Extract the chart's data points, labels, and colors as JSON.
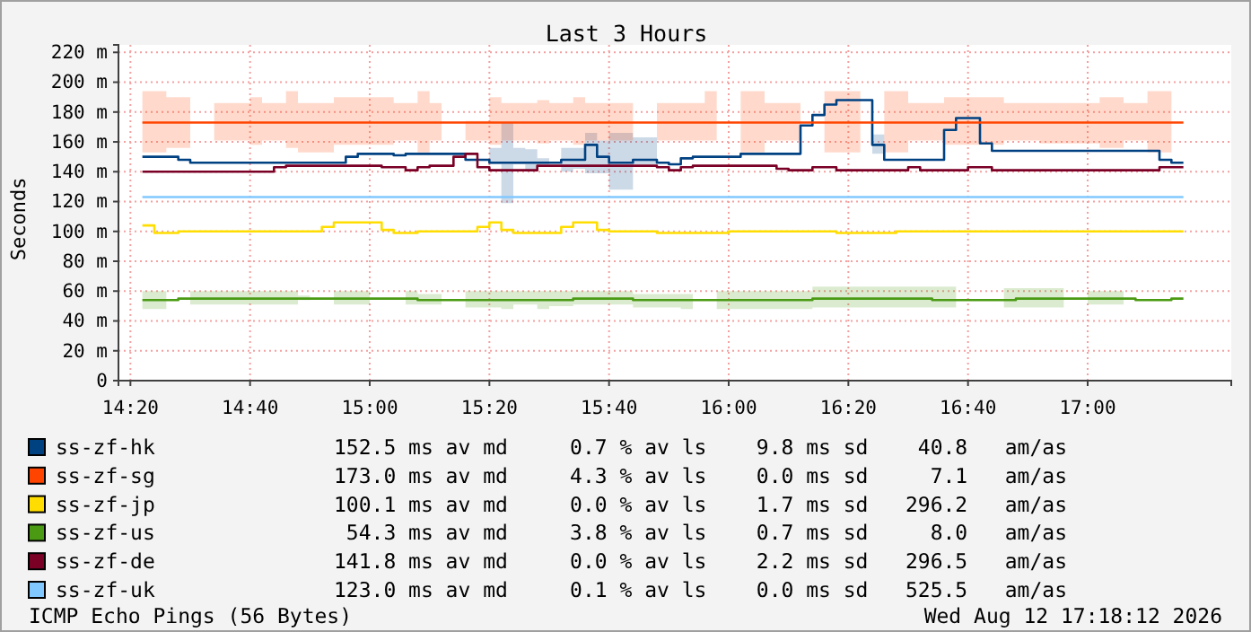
{
  "chart_data": {
    "type": "step",
    "title": "Last 3 Hours",
    "ylabel": "Seconds",
    "xlim": [
      "2026-08-12T14:18",
      "2026-08-12T17:24"
    ],
    "xticks": [
      {
        "value": "2026-08-12T14:20",
        "label": "14:20"
      },
      {
        "value": "2026-08-12T14:40",
        "label": "14:40"
      },
      {
        "value": "2026-08-12T15:00",
        "label": "15:00"
      },
      {
        "value": "2026-08-12T15:20",
        "label": "15:20"
      },
      {
        "value": "2026-08-12T15:40",
        "label": "15:40"
      },
      {
        "value": "2026-08-12T16:00",
        "label": "16:00"
      },
      {
        "value": "2026-08-12T16:20",
        "label": "16:20"
      },
      {
        "value": "2026-08-12T16:40",
        "label": "16:40"
      },
      {
        "value": "2026-08-12T17:00",
        "label": "17:00"
      }
    ],
    "ylim": [
      0,
      225
    ],
    "yticks": [
      0,
      {
        "value": 20,
        "label": "20 m"
      },
      {
        "value": 40,
        "label": "40 m"
      },
      {
        "value": 60,
        "label": "60 m"
      },
      {
        "value": 80,
        "label": "80 m"
      },
      {
        "value": 100,
        "label": "100 m"
      },
      {
        "value": 120,
        "label": "120 m"
      },
      {
        "value": 140,
        "label": "140 m"
      },
      {
        "value": 160,
        "label": "160 m"
      },
      {
        "value": 180,
        "label": "180 m"
      },
      {
        "value": 200,
        "label": "200 m"
      },
      {
        "value": 220,
        "label": "220 m"
      }
    ],
    "grid": true,
    "legend": "bottom",
    "series": [
      {
        "name": "ss-zf-hk",
        "type": "line",
        "color": "#004182",
        "x": [
          "2026-08-12T14:22",
          "2026-08-12T14:28",
          "2026-08-12T14:28",
          "2026-08-12T14:30",
          "2026-08-12T14:30",
          "2026-08-12T14:36",
          "2026-08-12T14:36",
          "2026-08-12T14:38",
          "2026-08-12T14:38",
          "2026-08-12T14:56",
          "2026-08-12T14:56",
          "2026-08-12T14:58",
          "2026-08-12T14:58",
          "2026-08-12T15:04",
          "2026-08-12T15:04",
          "2026-08-12T15:06",
          "2026-08-12T15:06",
          "2026-08-12T15:16",
          "2026-08-12T15:16",
          "2026-08-12T15:20",
          "2026-08-12T15:20",
          "2026-08-12T15:22",
          "2026-08-12T15:22",
          "2026-08-12T15:24",
          "2026-08-12T15:24",
          "2026-08-12T15:26",
          "2026-08-12T15:26",
          "2026-08-12T15:28",
          "2026-08-12T15:28",
          "2026-08-12T15:30",
          "2026-08-12T15:30",
          "2026-08-12T15:32",
          "2026-08-12T15:32",
          "2026-08-12T15:34",
          "2026-08-12T15:34",
          "2026-08-12T15:36",
          "2026-08-12T15:36",
          "2026-08-12T15:38",
          "2026-08-12T15:38",
          "2026-08-12T15:40",
          "2026-08-12T15:40",
          "2026-08-12T15:44",
          "2026-08-12T15:44",
          "2026-08-12T15:48",
          "2026-08-12T15:48",
          "2026-08-12T15:50",
          "2026-08-12T15:50",
          "2026-08-12T15:52",
          "2026-08-12T15:52",
          "2026-08-12T15:54",
          "2026-08-12T15:54",
          "2026-08-12T16:02",
          "2026-08-12T16:02",
          "2026-08-12T16:12",
          "2026-08-12T16:12",
          "2026-08-12T16:14",
          "2026-08-12T16:14",
          "2026-08-12T16:16",
          "2026-08-12T16:16",
          "2026-08-12T16:18",
          "2026-08-12T16:18",
          "2026-08-12T16:24",
          "2026-08-12T16:24",
          "2026-08-12T16:26",
          "2026-08-12T16:26",
          "2026-08-12T16:36",
          "2026-08-12T16:36",
          "2026-08-12T16:38",
          "2026-08-12T16:38",
          "2026-08-12T16:42",
          "2026-08-12T16:42",
          "2026-08-12T16:44",
          "2026-08-12T16:44",
          "2026-08-12T17:12",
          "2026-08-12T17:12",
          "2026-08-12T17:14",
          "2026-08-12T17:14",
          "2026-08-12T17:16"
        ],
        "values": [
          150,
          150,
          148,
          148,
          146,
          146,
          146,
          146,
          146,
          146,
          150,
          150,
          152,
          152,
          151,
          151,
          152,
          152,
          148,
          148,
          146,
          146,
          146,
          146,
          146,
          146,
          146,
          146,
          146,
          146,
          146,
          146,
          148,
          148,
          148,
          148,
          158,
          158,
          150,
          150,
          146,
          146,
          148,
          148,
          146,
          146,
          145,
          145,
          149,
          149,
          150,
          150,
          152,
          152,
          171,
          171,
          178,
          178,
          185,
          185,
          188,
          188,
          158,
          158,
          148,
          148,
          168,
          168,
          176,
          176,
          159,
          159,
          154,
          154,
          148,
          148,
          146,
          146
        ],
        "lower": [
          null,
          null,
          null,
          null,
          null,
          null,
          null,
          null,
          null,
          null,
          null,
          null,
          null,
          null,
          null,
          null,
          null,
          null,
          null,
          null,
          145,
          145,
          119,
          119,
          145,
          145,
          140,
          140,
          145,
          145,
          null,
          null,
          140,
          140,
          142,
          142,
          139,
          139,
          139,
          139,
          128,
          128,
          145,
          145,
          null,
          null,
          null,
          null,
          null,
          null,
          null,
          null,
          null,
          null,
          null,
          null,
          null,
          null,
          null,
          null,
          null,
          null,
          152,
          152,
          null,
          null,
          null,
          null,
          null,
          null,
          null,
          null,
          null,
          null,
          null,
          null,
          null,
          null
        ],
        "upper": [
          null,
          null,
          null,
          null,
          null,
          null,
          null,
          null,
          null,
          null,
          null,
          null,
          null,
          null,
          null,
          null,
          null,
          null,
          null,
          null,
          156,
          156,
          173,
          173,
          156,
          156,
          155,
          155,
          149,
          149,
          null,
          null,
          156,
          156,
          156,
          156,
          166,
          166,
          161,
          161,
          166,
          166,
          163,
          163,
          null,
          null,
          null,
          null,
          null,
          null,
          null,
          null,
          null,
          null,
          null,
          null,
          null,
          null,
          null,
          null,
          null,
          null,
          165,
          165,
          null,
          null,
          null,
          null,
          null,
          null,
          null,
          null,
          null,
          null,
          null,
          null,
          null,
          null
        ]
      },
      {
        "name": "ss-zf-sg",
        "type": "line",
        "color": "#ff4400",
        "x": [
          "2026-08-12T14:22",
          "2026-08-12T14:26",
          "2026-08-12T14:26",
          "2026-08-12T14:30",
          "2026-08-12T14:30",
          "2026-08-12T14:34",
          "2026-08-12T14:40",
          "2026-08-12T14:40",
          "2026-08-12T14:42",
          "2026-08-12T14:42",
          "2026-08-12T14:46",
          "2026-08-12T14:46",
          "2026-08-12T14:48",
          "2026-08-12T14:48",
          "2026-08-12T14:54",
          "2026-08-12T14:54",
          "2026-08-12T15:04",
          "2026-08-12T15:04",
          "2026-08-12T15:08",
          "2026-08-12T15:08",
          "2026-08-12T15:10",
          "2026-08-12T15:10",
          "2026-08-12T15:12",
          "2026-08-12T15:12",
          "2026-08-12T15:16",
          "2026-08-12T15:20",
          "2026-08-12T15:20",
          "2026-08-12T15:22",
          "2026-08-12T15:22",
          "2026-08-12T15:28",
          "2026-08-12T15:28",
          "2026-08-12T15:30",
          "2026-08-12T15:30",
          "2026-08-12T15:34",
          "2026-08-12T15:34",
          "2026-08-12T15:36",
          "2026-08-12T15:36",
          "2026-08-12T15:44",
          "2026-08-12T15:44",
          "2026-08-12T15:48",
          "2026-08-12T15:56",
          "2026-08-12T15:56",
          "2026-08-12T15:58",
          "2026-08-12T15:58",
          "2026-08-12T16:02",
          "2026-08-12T16:06",
          "2026-08-12T16:06",
          "2026-08-12T16:12",
          "2026-08-12T16:12",
          "2026-08-12T16:16",
          "2026-08-12T16:22",
          "2026-08-12T16:22",
          "2026-08-12T16:26",
          "2026-08-12T16:30",
          "2026-08-12T16:30",
          "2026-08-12T16:36",
          "2026-08-12T16:36",
          "2026-08-12T16:46",
          "2026-08-12T16:46",
          "2026-08-12T16:52",
          "2026-08-12T16:52",
          "2026-08-12T17:02",
          "2026-08-12T17:02",
          "2026-08-12T17:06",
          "2026-08-12T17:06",
          "2026-08-12T17:10",
          "2026-08-12T17:10",
          "2026-08-12T17:14",
          "2026-08-12T17:14",
          "2026-08-12T17:16"
        ],
        "values": [
          173,
          173,
          173,
          173,
          173,
          173,
          173,
          173,
          173,
          173,
          173,
          173,
          173,
          173,
          173,
          173,
          173,
          173,
          173,
          173,
          173,
          173,
          173,
          173,
          173,
          173,
          173,
          173,
          173,
          173,
          173,
          173,
          173,
          173,
          173,
          173,
          173,
          173,
          173,
          173,
          173,
          173,
          173,
          173,
          173,
          173,
          173,
          173,
          173,
          173,
          173,
          173,
          173,
          173,
          173,
          173,
          173,
          173,
          173,
          173,
          173,
          173,
          173,
          173,
          173,
          173,
          173,
          173,
          173,
          173
        ],
        "lower": [
          153,
          153,
          156,
          156,
          null,
          161,
          161,
          158,
          158,
          161,
          161,
          156,
          156,
          153,
          153,
          158,
          158,
          161,
          161,
          153,
          153,
          161,
          161,
          null,
          161,
          161,
          158,
          158,
          161,
          161,
          159,
          159,
          161,
          161,
          158,
          158,
          161,
          161,
          null,
          161,
          161,
          161,
          161,
          null,
          153,
          153,
          161,
          161,
          null,
          153,
          153,
          null,
          153,
          153,
          161,
          161,
          158,
          158,
          161,
          161,
          159,
          159,
          156,
          156,
          161,
          161,
          153,
          153,
          null,
          null
        ],
        "upper": [
          194,
          194,
          190,
          190,
          null,
          186,
          186,
          190,
          190,
          186,
          186,
          194,
          194,
          186,
          186,
          190,
          190,
          186,
          186,
          194,
          194,
          186,
          186,
          null,
          174,
          174,
          190,
          190,
          186,
          186,
          188,
          188,
          186,
          186,
          190,
          190,
          186,
          186,
          null,
          186,
          186,
          194,
          194,
          null,
          194,
          194,
          186,
          186,
          null,
          194,
          194,
          null,
          194,
          194,
          186,
          186,
          190,
          190,
          186,
          186,
          186,
          186,
          190,
          190,
          186,
          186,
          194,
          194,
          null,
          null
        ]
      },
      {
        "name": "ss-zf-jp",
        "color": "#ffdd00",
        "x": [
          "2026-08-12T14:22",
          "2026-08-12T14:24",
          "2026-08-12T14:28",
          "2026-08-12T14:52",
          "2026-08-12T14:54",
          "2026-08-12T15:02",
          "2026-08-12T15:04",
          "2026-08-12T15:08",
          "2026-08-12T15:18",
          "2026-08-12T15:20",
          "2026-08-12T15:22",
          "2026-08-12T15:24",
          "2026-08-12T15:32",
          "2026-08-12T15:34",
          "2026-08-12T15:38",
          "2026-08-12T15:40",
          "2026-08-12T15:48",
          "2026-08-12T16:00",
          "2026-08-12T16:18",
          "2026-08-12T16:28",
          "2026-08-12T17:16"
        ],
        "values": [
          104,
          99,
          100,
          103,
          106,
          101,
          99,
          100,
          103,
          106,
          101,
          99,
          103,
          106,
          101,
          100,
          99,
          100,
          99,
          100,
          100
        ]
      },
      {
        "name": "ss-zf-us",
        "type": "line",
        "color": "#4a9a14",
        "x": [
          "2026-08-12T14:22",
          "2026-08-12T14:26",
          "2026-08-12T14:26",
          "2026-08-12T14:28",
          "2026-08-12T14:28",
          "2026-08-12T14:30",
          "2026-08-12T14:30",
          "2026-08-12T14:48",
          "2026-08-12T14:48",
          "2026-08-12T14:50",
          "2026-08-12T14:50",
          "2026-08-12T14:54",
          "2026-08-12T14:54",
          "2026-08-12T15:00",
          "2026-08-12T15:00",
          "2026-08-12T15:06",
          "2026-08-12T15:06",
          "2026-08-12T15:08",
          "2026-08-12T15:08",
          "2026-08-12T15:12",
          "2026-08-12T15:12",
          "2026-08-12T15:16",
          "2026-08-12T15:16",
          "2026-08-12T15:22",
          "2026-08-12T15:22",
          "2026-08-12T15:24",
          "2026-08-12T15:24",
          "2026-08-12T15:28",
          "2026-08-12T15:28",
          "2026-08-12T15:30",
          "2026-08-12T15:30",
          "2026-08-12T15:34",
          "2026-08-12T15:34",
          "2026-08-12T15:44",
          "2026-08-12T15:44",
          "2026-08-12T15:52",
          "2026-08-12T15:52",
          "2026-08-12T15:54",
          "2026-08-12T15:54",
          "2026-08-12T15:58",
          "2026-08-12T15:58",
          "2026-08-12T16:14",
          "2026-08-12T16:14",
          "2026-08-12T16:34",
          "2026-08-12T16:34",
          "2026-08-12T16:38",
          "2026-08-12T16:38",
          "2026-08-12T16:46",
          "2026-08-12T16:46",
          "2026-08-12T16:48",
          "2026-08-12T16:48",
          "2026-08-12T16:56",
          "2026-08-12T16:56",
          "2026-08-12T17:00",
          "2026-08-12T17:00",
          "2026-08-12T17:06",
          "2026-08-12T17:06",
          "2026-08-12T17:08",
          "2026-08-12T17:08",
          "2026-08-12T17:14",
          "2026-08-12T17:14",
          "2026-08-12T17:16"
        ],
        "values": [
          54,
          54,
          54,
          54,
          55,
          55,
          55,
          55,
          55,
          55,
          55,
          55,
          55,
          55,
          55,
          55,
          55,
          55,
          54,
          54,
          54,
          54,
          54,
          54,
          54,
          54,
          54,
          54,
          54,
          54,
          54,
          54,
          55,
          55,
          54,
          54,
          54,
          54,
          54,
          54,
          54,
          54,
          55,
          55,
          54,
          54,
          54,
          54,
          54,
          54,
          55,
          55,
          55,
          55,
          55,
          55,
          55,
          55,
          54,
          54,
          55,
          55
        ],
        "lower": [
          48,
          48,
          null,
          null,
          null,
          null,
          51,
          51,
          54,
          54,
          null,
          null,
          51,
          51,
          null,
          null,
          51,
          51,
          51,
          51,
          null,
          null,
          49,
          49,
          48,
          48,
          51,
          51,
          48,
          48,
          50,
          50,
          51,
          51,
          49,
          49,
          48,
          48,
          null,
          null,
          48,
          48,
          49,
          49,
          49,
          49,
          null,
          null,
          49,
          49,
          49,
          49,
          null,
          null,
          51,
          51,
          null,
          null,
          null,
          null,
          null,
          null
        ],
        "upper": [
          60,
          60,
          null,
          null,
          null,
          null,
          60,
          60,
          57,
          57,
          null,
          null,
          60,
          60,
          null,
          null,
          60,
          60,
          58,
          58,
          null,
          null,
          60,
          60,
          60,
          60,
          60,
          60,
          60,
          60,
          60,
          60,
          60,
          60,
          58,
          58,
          58,
          58,
          null,
          null,
          60,
          60,
          63,
          63,
          63,
          63,
          null,
          null,
          62,
          62,
          62,
          62,
          null,
          null,
          60,
          60,
          null,
          null,
          null,
          null,
          null,
          null
        ]
      },
      {
        "name": "ss-zf-de",
        "color": "#7a0026",
        "x": [
          "2026-08-12T14:22",
          "2026-08-12T14:44",
          "2026-08-12T14:46",
          "2026-08-12T15:02",
          "2026-08-12T15:06",
          "2026-08-12T15:08",
          "2026-08-12T15:10",
          "2026-08-12T15:14",
          "2026-08-12T15:16",
          "2026-08-12T15:18",
          "2026-08-12T15:20",
          "2026-08-12T15:28",
          "2026-08-12T15:48",
          "2026-08-12T15:50",
          "2026-08-12T15:52",
          "2026-08-12T15:54",
          "2026-08-12T16:08",
          "2026-08-12T16:10",
          "2026-08-12T16:14",
          "2026-08-12T16:18",
          "2026-08-12T16:30",
          "2026-08-12T16:32",
          "2026-08-12T16:40",
          "2026-08-12T16:44",
          "2026-08-12T17:12",
          "2026-08-12T17:16"
        ],
        "values": [
          140,
          143,
          144,
          143,
          141,
          143,
          144,
          150,
          152,
          143,
          141,
          144,
          143,
          141,
          143,
          144,
          142,
          141,
          143,
          141,
          143,
          141,
          143,
          141,
          143,
          143
        ]
      },
      {
        "name": "ss-zf-uk",
        "color": "#80c8ff",
        "x": [
          "2026-08-12T14:22",
          "2026-08-12T17:16"
        ],
        "values": [
          123,
          123
        ]
      }
    ],
    "annotations": [
      "152.5 ms av md     0.7 % av ls    9.8 ms sd    40.8   am/as",
      "173.0 ms av md     4.3 % av ls    0.0 ms sd     7.1   am/as",
      "100.1 ms av md     0.0 % av ls    1.7 ms sd   296.2   am/as",
      " 54.3 ms av md     3.8 % av ls    0.7 ms sd     8.0   am/as",
      "141.8 ms av md     0.0 % av ls    2.2 ms sd   296.5   am/as",
      "123.0 ms av md     0.1 % av ls    0.0 ms sd   525.5   am/as",
      "ICMP Echo Pings (56 Bytes)",
      "Wed Aug 12 17:18:12 2026"
    ]
  }
}
